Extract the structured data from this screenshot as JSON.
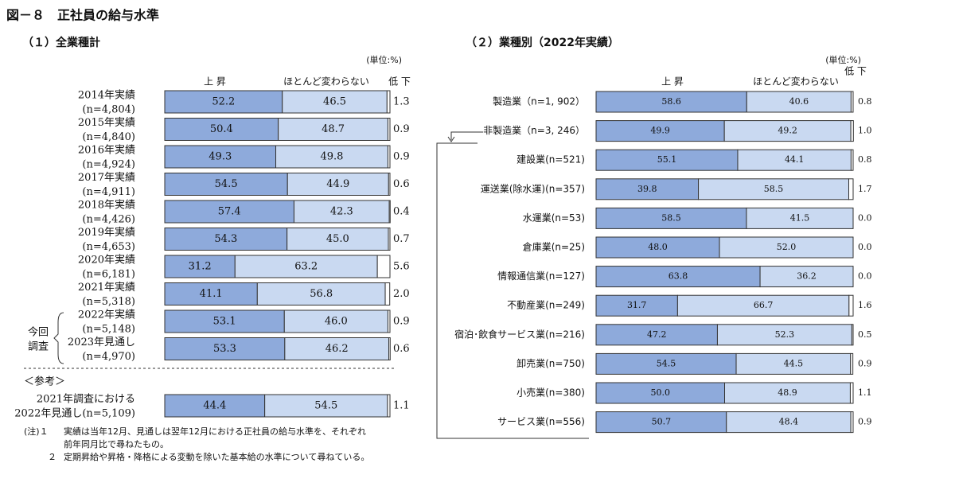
{
  "title": "図－８　正社員の給与水準",
  "chart_data": [
    {
      "type": "stacked_barh",
      "title": "（１）全業種計",
      "unit": "(単位:%)",
      "categories": [
        [
          "2014年実績",
          "(n=4,804)"
        ],
        [
          "2015年実績",
          "(n=4,840)"
        ],
        [
          "2016年実績",
          "(n=4,924)"
        ],
        [
          "2017年実績",
          "(n=4,911)"
        ],
        [
          "2018年実績",
          "(n=4,426)"
        ],
        [
          "2019年実績",
          "(n=4,653)"
        ],
        [
          "2020年実績",
          "(n=6,181)"
        ],
        [
          "2021年実績",
          "(n=5,318)"
        ],
        [
          "2022年実績",
          "(n=5,148)"
        ],
        [
          "2023年見通し",
          "(n=4,970)"
        ],
        [
          "2021年調査における",
          "2022年見通し(n=5,109)"
        ]
      ],
      "series": [
        {
          "name": "上 昇",
          "color": "#8eaadb",
          "values": [
            52.2,
            50.4,
            49.3,
            54.5,
            57.4,
            54.3,
            31.2,
            41.1,
            53.1,
            53.3,
            44.4
          ],
          "value_labels": [
            "52.2",
            "50.4",
            "49.3",
            "54.5",
            "57.4",
            "54.3",
            "31.2",
            "41.1",
            "53.1",
            "53.3",
            "44.4"
          ]
        },
        {
          "name": "ほとんど変わらない",
          "color": "#c9d9f1",
          "values": [
            46.5,
            48.7,
            49.8,
            44.9,
            42.3,
            45.0,
            63.2,
            56.8,
            46.0,
            46.2,
            54.5
          ],
          "value_labels": [
            "46.5",
            "48.7",
            "49.8",
            "44.9",
            "42.3",
            "45.0",
            "63.2",
            "56.8",
            "46.0",
            "46.2",
            "54.5"
          ]
        },
        {
          "name": "低 下",
          "color": "#ffffff",
          "values": [
            1.3,
            0.9,
            0.9,
            0.6,
            0.4,
            0.7,
            5.6,
            2.0,
            0.9,
            0.6,
            1.1
          ],
          "value_labels": [
            "1.3",
            "0.9",
            "0.9",
            "0.6",
            "0.4",
            "0.7",
            "5.6",
            "2.0",
            "0.9",
            "0.6",
            "1.1"
          ]
        }
      ],
      "bracket_label": [
        "今回",
        "調査"
      ],
      "reference_label": "＜参考＞"
    },
    {
      "type": "stacked_barh",
      "title": "（２）業種別（2022年実績）",
      "unit": "(単位:%)",
      "categories": [
        [
          "製造業（n=1, 902）"
        ],
        [
          "非製造業（n=3, 246）"
        ],
        [
          "建設業(n=521)"
        ],
        [
          "運送業(除水運)(n=357)"
        ],
        [
          "水運業(n=53)"
        ],
        [
          "倉庫業(n=25)"
        ],
        [
          "情報通信業(n=127)"
        ],
        [
          "不動産業(n=249)"
        ],
        [
          "宿泊･飲食サービス業(n=216)"
        ],
        [
          "卸売業(n=750)"
        ],
        [
          "小売業(n=380)"
        ],
        [
          "サービス業(n=556)"
        ]
      ],
      "series": [
        {
          "name": "上 昇",
          "color": "#8eaadb",
          "values": [
            58.6,
            49.9,
            55.1,
            39.8,
            58.5,
            48.0,
            63.8,
            31.7,
            47.2,
            54.5,
            50.0,
            50.7
          ],
          "value_labels": [
            "58.6",
            "49.9",
            "55.1",
            "39.8",
            "58.5",
            "48.0",
            "63.8",
            "31.7",
            "47.2",
            "54.5",
            "50.0",
            "50.7"
          ]
        },
        {
          "name": "ほとんど変わらない",
          "color": "#c9d9f1",
          "values": [
            40.6,
            49.2,
            44.1,
            58.5,
            41.5,
            52.0,
            36.2,
            66.7,
            52.3,
            44.5,
            48.9,
            48.4
          ],
          "value_labels": [
            "40.6",
            "49.2",
            "44.1",
            "58.5",
            "41.5",
            "52.0",
            "36.2",
            "66.7",
            "52.3",
            "44.5",
            "48.9",
            "48.4"
          ]
        },
        {
          "name": "低 下",
          "color": "#ffffff",
          "values": [
            0.8,
            1.0,
            0.8,
            1.7,
            0.0,
            0.0,
            0.0,
            1.6,
            0.5,
            0.9,
            1.1,
            0.9
          ],
          "value_labels": [
            "0.8",
            "1.0",
            "0.8",
            "1.7",
            "0.0",
            "0.0",
            "0.0",
            "1.6",
            "0.5",
            "0.9",
            "1.1",
            "0.9"
          ]
        }
      ]
    }
  ],
  "notes": [
    {
      "marker": "(注)１",
      "text": "実績は当年12月、見通しは翌年12月における正社員の給与水準を、それぞれ",
      "text2": "前年同月比で尋ねたもの。"
    },
    {
      "marker": "２",
      "text": "定期昇給や昇格・降格による変動を除いた基本給の水準について尋ねている。"
    }
  ]
}
